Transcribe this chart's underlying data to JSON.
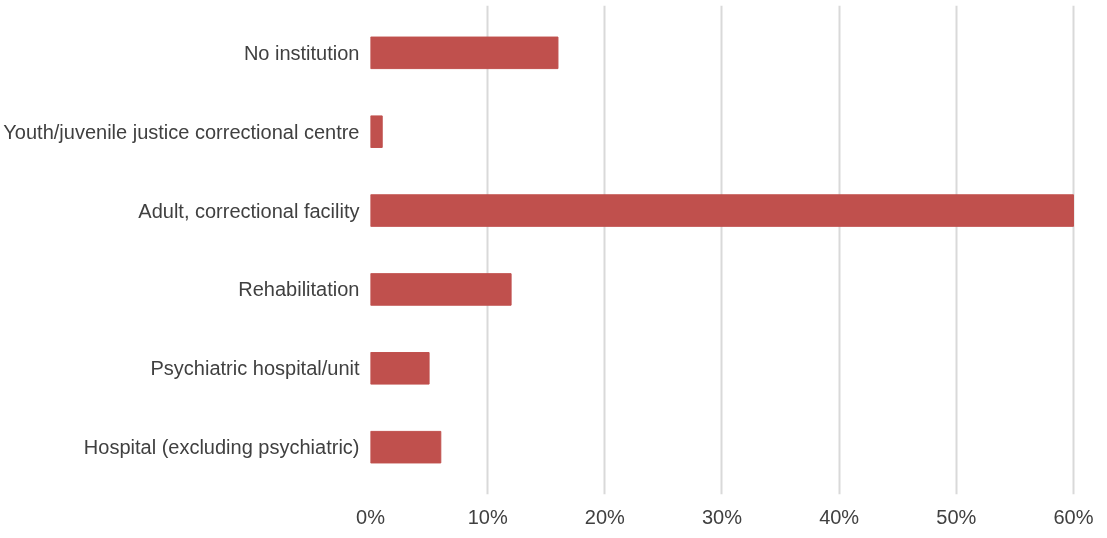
{
  "chart_data": {
    "type": "bar",
    "orientation": "horizontal",
    "categories": [
      "No institution",
      "Youth/juvenile justice correctional centre",
      "Adult, correctional facility",
      "Rehabilitation",
      "Psychiatric hospital/unit",
      "Hospital (excluding psychiatric)"
    ],
    "values": [
      16,
      1,
      60,
      12,
      5,
      6
    ],
    "color": "#c0504d",
    "xlim": [
      0,
      60
    ],
    "xticks": [
      {
        "value": 0,
        "label": "0%"
      },
      {
        "value": 10,
        "label": "10%"
      },
      {
        "value": 20,
        "label": "20%"
      },
      {
        "value": 30,
        "label": "30%"
      },
      {
        "value": 40,
        "label": "40%"
      },
      {
        "value": 50,
        "label": "50%"
      },
      {
        "value": 60,
        "label": "60%"
      }
    ],
    "grid": "x"
  }
}
